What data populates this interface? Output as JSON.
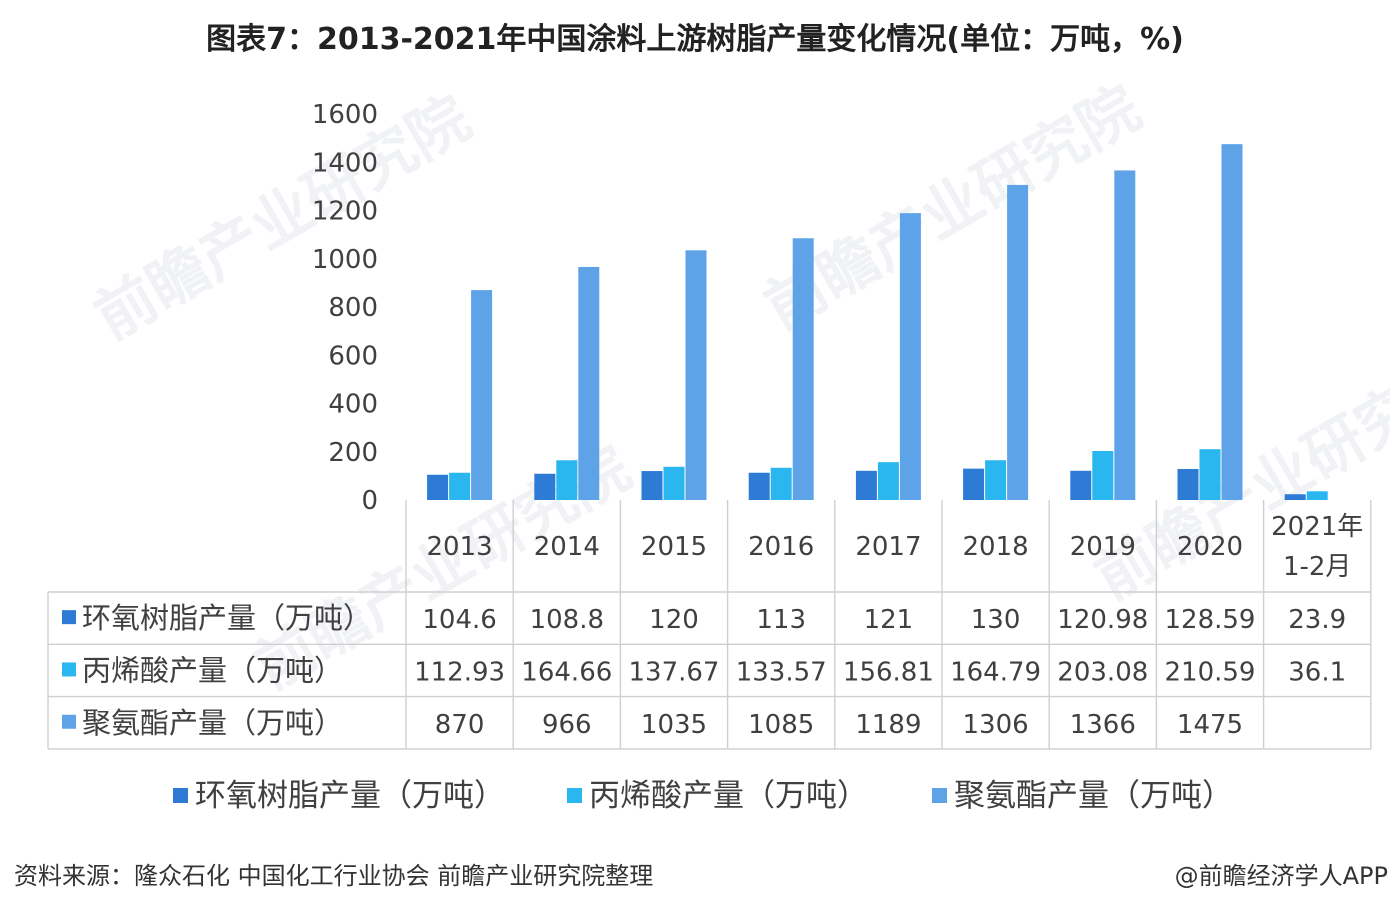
{
  "title": "图表7：2013-2021年中国涂料上游树脂产量变化情况(单位：万吨，%)",
  "source": "资料来源：隆众石化 中国化工行业协会 前瞻产业研究院整理",
  "credit": "@前瞻经济学人APP",
  "watermark": "前瞻产业研究院",
  "colors": {
    "epoxy": "#2e7bd6",
    "acrylic": "#2ab6ef",
    "pu": "#5ea2e8"
  },
  "chart_data": {
    "type": "bar",
    "categories": [
      "2013",
      "2014",
      "2015",
      "2016",
      "2017",
      "2018",
      "2019",
      "2020",
      "2021年\n1-2月"
    ],
    "series": [
      {
        "name": "环氧树脂产量（万吨）",
        "values": [
          104.6,
          108.8,
          120,
          113,
          121,
          130,
          120.98,
          128.59,
          23.9
        ],
        "labels": [
          "104.6",
          "108.8",
          "120",
          "113",
          "121",
          "130",
          "120.98",
          "128.59",
          "23.9"
        ]
      },
      {
        "name": "丙烯酸产量（万吨）",
        "values": [
          112.93,
          164.66,
          137.67,
          133.57,
          156.81,
          164.79,
          203.08,
          210.59,
          36.1
        ],
        "labels": [
          "112.93",
          "164.66",
          "137.67",
          "133.57",
          "156.81",
          "164.79",
          "203.08",
          "210.59",
          "36.1"
        ]
      },
      {
        "name": "聚氨酯产量（万吨）",
        "values": [
          870,
          966,
          1035,
          1085,
          1189,
          1306,
          1366,
          1475,
          null
        ],
        "labels": [
          "870",
          "966",
          "1035",
          "1085",
          "1189",
          "1306",
          "1366",
          "1475",
          ""
        ]
      }
    ],
    "yticks": [
      "0",
      "200",
      "400",
      "600",
      "800",
      "1000",
      "1200",
      "1400",
      "1600"
    ],
    "ylim": [
      0,
      1600
    ],
    "legend": "bottom",
    "grid": false,
    "data_table": true
  }
}
